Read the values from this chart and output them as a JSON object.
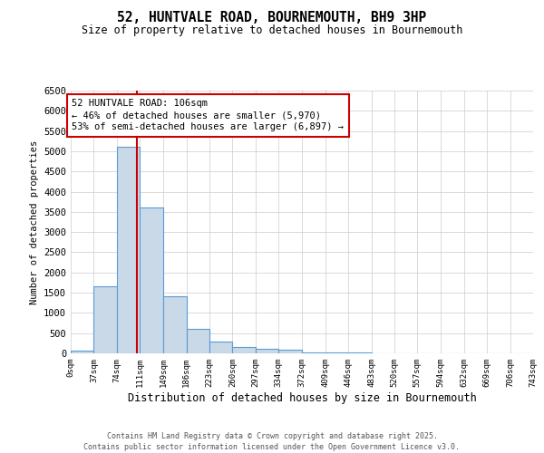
{
  "title": "52, HUNTVALE ROAD, BOURNEMOUTH, BH9 3HP",
  "subtitle": "Size of property relative to detached houses in Bournemouth",
  "xlabel": "Distribution of detached houses by size in Bournemouth",
  "ylabel": "Number of detached properties",
  "bar_heights": [
    75,
    1650,
    5100,
    3600,
    1420,
    610,
    300,
    155,
    120,
    80,
    30,
    25,
    25,
    0,
    0,
    0,
    0,
    0,
    0,
    0
  ],
  "bin_edges": [
    0,
    37,
    74,
    111,
    149,
    186,
    223,
    260,
    297,
    334,
    372,
    409,
    446,
    483,
    520,
    557,
    594,
    632,
    669,
    706,
    743
  ],
  "x_tick_labels": [
    "0sqm",
    "37sqm",
    "74sqm",
    "111sqm",
    "149sqm",
    "186sqm",
    "223sqm",
    "260sqm",
    "297sqm",
    "334sqm",
    "372sqm",
    "409sqm",
    "446sqm",
    "483sqm",
    "520sqm",
    "557sqm",
    "594sqm",
    "632sqm",
    "669sqm",
    "706sqm",
    "743sqm"
  ],
  "bar_color": "#c9d9e8",
  "bar_edge_color": "#5b9bd5",
  "grid_color": "#cccccc",
  "background_color": "#ffffff",
  "property_size": 106,
  "red_line_color": "#cc0000",
  "annotation_text": "52 HUNTVALE ROAD: 106sqm\n← 46% of detached houses are smaller (5,970)\n53% of semi-detached houses are larger (6,897) →",
  "annotation_box_color": "#ffffff",
  "annotation_border_color": "#cc0000",
  "ylim": [
    0,
    6500
  ],
  "yticks": [
    0,
    500,
    1000,
    1500,
    2000,
    2500,
    3000,
    3500,
    4000,
    4500,
    5000,
    5500,
    6000,
    6500
  ],
  "footer_line1": "Contains HM Land Registry data © Crown copyright and database right 2025.",
  "footer_line2": "Contains public sector information licensed under the Open Government Licence v3.0."
}
